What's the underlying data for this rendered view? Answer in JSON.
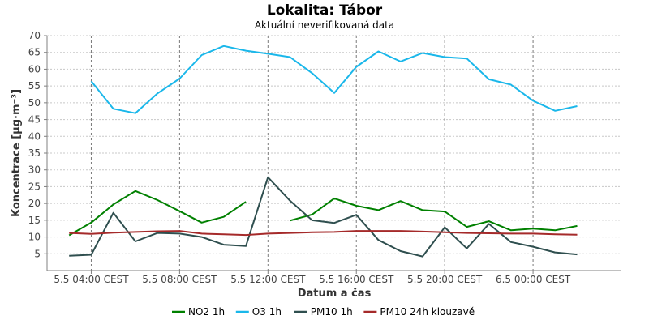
{
  "chart_data": {
    "type": "line",
    "title": "Lokalita: Tábor",
    "subtitle": "Aktuální neverifikovaná data",
    "xlabel": "Datum a čas",
    "ylabel": "Koncentrace [µg·m⁻³]",
    "ylim": [
      0,
      70
    ],
    "yticks": [
      5,
      10,
      15,
      20,
      25,
      30,
      35,
      40,
      45,
      50,
      55,
      60,
      65,
      70
    ],
    "xlim": [
      "5.5 02:00",
      "6.5 04:00"
    ],
    "xticks": [
      {
        "x": "5.5 04:00",
        "label": "5.5 04:00 CEST"
      },
      {
        "x": "5.5 08:00",
        "label": "5.5 08:00 CEST"
      },
      {
        "x": "5.5 12:00",
        "label": "5.5 12:00 CEST"
      },
      {
        "x": "5.5 16:00",
        "label": "5.5 16:00 CEST"
      },
      {
        "x": "5.5 20:00",
        "label": "5.5 20:00 CEST"
      },
      {
        "x": "6.5 00:00",
        "label": "6.5 00:00 CEST"
      }
    ],
    "x": [
      "5.5 03:00",
      "5.5 04:00",
      "5.5 05:00",
      "5.5 06:00",
      "5.5 07:00",
      "5.5 08:00",
      "5.5 09:00",
      "5.5 10:00",
      "5.5 11:00",
      "5.5 12:00",
      "5.5 13:00",
      "5.5 14:00",
      "5.5 15:00",
      "5.5 16:00",
      "5.5 17:00",
      "5.5 18:00",
      "5.5 19:00",
      "5.5 20:00",
      "5.5 21:00",
      "5.5 22:00",
      "5.5 23:00",
      "6.5 00:00",
      "6.5 01:00",
      "6.5 02:00"
    ],
    "grid": true,
    "legend": "bottom",
    "series": [
      {
        "name": "NO2 1h",
        "color": "#008000",
        "values": [
          10.5,
          14.3,
          19.7,
          23.7,
          21.0,
          17.7,
          14.3,
          16.0,
          20.5,
          null,
          14.9,
          16.7,
          21.5,
          19.3,
          18.0,
          20.7,
          18.0,
          17.6,
          13.0,
          14.7,
          12.0,
          12.5,
          12.0,
          13.3
        ]
      },
      {
        "name": "O3 1h",
        "color": "#1ab7ea",
        "values": [
          null,
          56.4,
          48.2,
          46.9,
          52.8,
          57.2,
          64.2,
          66.9,
          65.5,
          64.6,
          63.6,
          58.8,
          52.9,
          60.7,
          65.3,
          62.3,
          64.8,
          63.6,
          63.2,
          57.0,
          55.4,
          50.6,
          47.6,
          49.0
        ]
      },
      {
        "name": "PM10 1h",
        "color": "#2f4f4f",
        "values": [
          4.4,
          4.7,
          17.2,
          8.7,
          11.2,
          11.0,
          10.0,
          7.7,
          7.3,
          27.8,
          20.8,
          15.0,
          14.2,
          16.6,
          9.1,
          5.8,
          4.2,
          12.9,
          6.6,
          13.9,
          8.5,
          7.1,
          5.4,
          4.8
        ]
      },
      {
        "name": "PM10 24h klouzavě",
        "color": "#a52a2a",
        "values": [
          11.2,
          10.9,
          11.3,
          11.5,
          11.7,
          11.8,
          11.0,
          10.8,
          10.6,
          11.0,
          11.2,
          11.4,
          11.5,
          11.8,
          11.8,
          11.8,
          11.6,
          11.4,
          11.2,
          11.1,
          11.0,
          11.0,
          10.8,
          10.7
        ]
      }
    ]
  }
}
